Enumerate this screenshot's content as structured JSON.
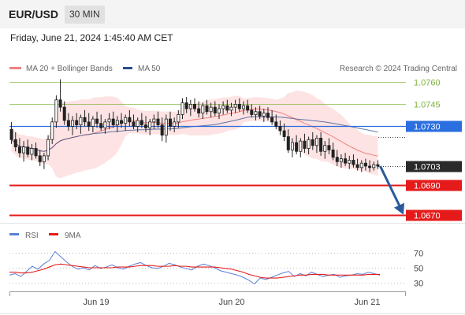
{
  "header": {
    "symbol": "EUR/USD",
    "interval": "30 MIN"
  },
  "datetime": "Friday, June 21, 2024 1:45:40 AM CET",
  "copyright": "Research © 2024 Trading Central",
  "colors": {
    "bollinger": "#f08080",
    "ma50": "#2b4c8c",
    "resistance": "#7db33a",
    "pivot": "#2a6ee0",
    "support": "#e51b1b",
    "arrow": "#2b5a9a",
    "bull": "#ffffff",
    "bear": "#222222",
    "rsi": "#5b7fd6",
    "rsi_ma": "#e51b1b"
  },
  "chart_data": [
    {
      "type": "candlestick",
      "legend": [
        "MA 20 + Bollinger Bands",
        "MA 50"
      ],
      "x_ticks": [
        "Jun 19",
        "Jun 20",
        "Jun 21"
      ],
      "ylim": [
        1.0665,
        1.0765
      ],
      "levels": [
        {
          "value": 1.076,
          "label": "1.0760",
          "kind": "resistance"
        },
        {
          "value": 1.0745,
          "label": "1.0745",
          "kind": "resistance"
        },
        {
          "value": 1.073,
          "label": "1.0730",
          "kind": "pivot"
        },
        {
          "value": 1.0703,
          "label": "1.0703",
          "kind": "last"
        },
        {
          "value": 1.069,
          "label": "1.0690",
          "kind": "support"
        },
        {
          "value": 1.067,
          "label": "1.0670",
          "kind": "support"
        }
      ],
      "candles": [
        [
          1.0728,
          1.0733,
          1.0718,
          1.0721
        ],
        [
          1.0721,
          1.0726,
          1.0713,
          1.0716
        ],
        [
          1.0716,
          1.0722,
          1.0709,
          1.0712
        ],
        [
          1.0712,
          1.072,
          1.0706,
          1.0716
        ],
        [
          1.0716,
          1.0721,
          1.0709,
          1.0711
        ],
        [
          1.0711,
          1.0718,
          1.0707,
          1.0715
        ],
        [
          1.0715,
          1.0719,
          1.0708,
          1.071
        ],
        [
          1.071,
          1.0714,
          1.0703,
          1.0706
        ],
        [
          1.0706,
          1.0712,
          1.0701,
          1.071
        ],
        [
          1.071,
          1.0724,
          1.0707,
          1.0721
        ],
        [
          1.0721,
          1.0736,
          1.0718,
          1.0733
        ],
        [
          1.0733,
          1.0751,
          1.0729,
          1.0748
        ],
        [
          1.0748,
          1.0762,
          1.074,
          1.0743
        ],
        [
          1.0743,
          1.0747,
          1.0731,
          1.0734
        ],
        [
          1.0734,
          1.0739,
          1.0727,
          1.073
        ],
        [
          1.073,
          1.0737,
          1.0724,
          1.0734
        ],
        [
          1.0734,
          1.0739,
          1.0728,
          1.0731
        ],
        [
          1.0731,
          1.0738,
          1.0725,
          1.0736
        ],
        [
          1.0736,
          1.0741,
          1.073,
          1.0733
        ],
        [
          1.0733,
          1.0739,
          1.0727,
          1.073
        ],
        [
          1.073,
          1.0737,
          1.0726,
          1.0735
        ],
        [
          1.0735,
          1.074,
          1.0729,
          1.0732
        ],
        [
          1.0732,
          1.0738,
          1.0727,
          1.0729
        ],
        [
          1.0729,
          1.0735,
          1.0725,
          1.0733
        ],
        [
          1.0733,
          1.0739,
          1.0728,
          1.0735
        ],
        [
          1.0735,
          1.074,
          1.0729,
          1.0731
        ],
        [
          1.0731,
          1.0737,
          1.0726,
          1.0734
        ],
        [
          1.0734,
          1.0739,
          1.0729,
          1.0732
        ],
        [
          1.0732,
          1.0738,
          1.0727,
          1.0736
        ],
        [
          1.0736,
          1.0741,
          1.073,
          1.0733
        ],
        [
          1.0733,
          1.0738,
          1.0728,
          1.073
        ],
        [
          1.073,
          1.0736,
          1.0726,
          1.0734
        ],
        [
          1.0734,
          1.0739,
          1.0729,
          1.0731
        ],
        [
          1.0731,
          1.0737,
          1.0726,
          1.0729
        ],
        [
          1.0729,
          1.0735,
          1.0724,
          1.0733
        ],
        [
          1.0733,
          1.0738,
          1.0728,
          1.0735
        ],
        [
          1.0735,
          1.074,
          1.0729,
          1.0731
        ],
        [
          1.0731,
          1.0736,
          1.072,
          1.0724
        ],
        [
          1.0724,
          1.0738,
          1.0719,
          1.0735
        ],
        [
          1.0735,
          1.074,
          1.0727,
          1.073
        ],
        [
          1.073,
          1.0736,
          1.0726,
          1.0733
        ],
        [
          1.0733,
          1.0741,
          1.0729,
          1.0738
        ],
        [
          1.0738,
          1.0749,
          1.0735,
          1.0746
        ],
        [
          1.0746,
          1.075,
          1.0739,
          1.0742
        ],
        [
          1.0742,
          1.0748,
          1.0737,
          1.0745
        ],
        [
          1.0745,
          1.0749,
          1.074,
          1.0742
        ],
        [
          1.0742,
          1.0747,
          1.0736,
          1.0739
        ],
        [
          1.0739,
          1.0746,
          1.0735,
          1.0744
        ],
        [
          1.0744,
          1.0748,
          1.0738,
          1.074
        ],
        [
          1.074,
          1.0746,
          1.0736,
          1.0743
        ],
        [
          1.0743,
          1.0747,
          1.0737,
          1.0739
        ],
        [
          1.0739,
          1.0745,
          1.0735,
          1.0742
        ],
        [
          1.0742,
          1.0747,
          1.0738,
          1.0744
        ],
        [
          1.0744,
          1.0748,
          1.0739,
          1.0741
        ],
        [
          1.0741,
          1.0746,
          1.0737,
          1.0743
        ],
        [
          1.0743,
          1.0748,
          1.0739,
          1.0745
        ],
        [
          1.0745,
          1.0749,
          1.074,
          1.0742
        ],
        [
          1.0742,
          1.0747,
          1.0738,
          1.0744
        ],
        [
          1.0744,
          1.0748,
          1.0739,
          1.0741
        ],
        [
          1.0741,
          1.0745,
          1.0736,
          1.0738
        ],
        [
          1.0738,
          1.0743,
          1.0734,
          1.074
        ],
        [
          1.074,
          1.0744,
          1.0735,
          1.0737
        ],
        [
          1.0737,
          1.0742,
          1.0733,
          1.0739
        ],
        [
          1.0739,
          1.0743,
          1.0734,
          1.0736
        ],
        [
          1.0736,
          1.0741,
          1.0731,
          1.0733
        ],
        [
          1.0733,
          1.0738,
          1.0728,
          1.073
        ],
        [
          1.073,
          1.0734,
          1.0724,
          1.0727
        ],
        [
          1.0727,
          1.0732,
          1.072,
          1.0723
        ],
        [
          1.0723,
          1.0728,
          1.0712,
          1.0714
        ],
        [
          1.0714,
          1.0722,
          1.0709,
          1.0719
        ],
        [
          1.0719,
          1.0724,
          1.0711,
          1.0713
        ],
        [
          1.0713,
          1.0722,
          1.0709,
          1.072
        ],
        [
          1.072,
          1.0725,
          1.0712,
          1.0715
        ],
        [
          1.0715,
          1.0723,
          1.0711,
          1.0721
        ],
        [
          1.0721,
          1.0726,
          1.0714,
          1.0717
        ],
        [
          1.0717,
          1.0724,
          1.0712,
          1.0722
        ],
        [
          1.0722,
          1.0726,
          1.071,
          1.0713
        ],
        [
          1.0713,
          1.072,
          1.0708,
          1.0717
        ],
        [
          1.0717,
          1.0722,
          1.0711,
          1.0714
        ],
        [
          1.0714,
          1.0719,
          1.0707,
          1.0709
        ],
        [
          1.0709,
          1.0714,
          1.0703,
          1.0706
        ],
        [
          1.0706,
          1.0711,
          1.0702,
          1.0708
        ],
        [
          1.0708,
          1.0712,
          1.0703,
          1.0705
        ],
        [
          1.0705,
          1.071,
          1.0701,
          1.0707
        ],
        [
          1.0707,
          1.0711,
          1.0702,
          1.0704
        ],
        [
          1.0704,
          1.0708,
          1.07,
          1.0702
        ],
        [
          1.0702,
          1.0707,
          1.0699,
          1.0705
        ],
        [
          1.0705,
          1.0708,
          1.07,
          1.0703
        ],
        [
          1.0703,
          1.0707,
          1.0699,
          1.0702
        ],
        [
          1.0702,
          1.0706,
          1.07,
          1.0704
        ],
        [
          1.0704,
          1.0707,
          1.0701,
          1.0703
        ]
      ]
    },
    {
      "type": "line",
      "legend": [
        "RSI",
        "9MA"
      ],
      "ylim": [
        20,
        80
      ],
      "y_ticks": [
        70,
        50,
        30
      ],
      "series": [
        {
          "name": "RSI",
          "values": [
            40,
            42,
            38,
            45,
            52,
            48,
            55,
            60,
            72,
            65,
            58,
            52,
            48,
            50,
            47,
            53,
            49,
            51,
            54,
            50,
            48,
            52,
            55,
            57,
            53,
            50,
            49,
            52,
            56,
            54,
            51,
            49,
            47,
            52,
            55,
            53,
            50,
            46,
            44,
            42,
            40,
            37,
            33,
            28,
            36,
            34,
            37,
            40,
            43,
            45,
            38,
            42,
            39,
            44,
            41,
            38,
            40,
            41,
            37,
            39,
            40,
            42,
            41,
            44,
            42,
            40
          ]
        },
        {
          "name": "9MA",
          "values": [
            44,
            44,
            43,
            43,
            44,
            46,
            48,
            51,
            54,
            55,
            54,
            53,
            52,
            51,
            50,
            50,
            50,
            50,
            50,
            51,
            51,
            51,
            52,
            53,
            53,
            53,
            52,
            52,
            52,
            53,
            52,
            52,
            51,
            51,
            51,
            51,
            51,
            50,
            49,
            48,
            46,
            44,
            41,
            39,
            37,
            36,
            36,
            36,
            37,
            38,
            39,
            40,
            40,
            41,
            41,
            41,
            40,
            40,
            40,
            40,
            40,
            40,
            40,
            41,
            41,
            41
          ]
        }
      ]
    }
  ]
}
